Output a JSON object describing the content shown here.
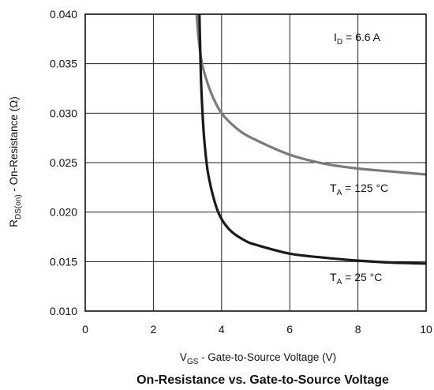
{
  "chart_data": {
    "type": "line",
    "title": "On-Resistance vs. Gate-to-Source Voltage",
    "xlabel": {
      "main": "V",
      "sub": "GS",
      "rest": " - Gate-to-Source Voltage (V)"
    },
    "ylabel": {
      "main": "R",
      "sub": "DS(on)",
      "rest": " - On-Resistance (Ω)"
    },
    "xlim": [
      0,
      10
    ],
    "ylim": [
      0.01,
      0.04
    ],
    "xticks": [
      0,
      2,
      4,
      6,
      8,
      10
    ],
    "xtick_labels": [
      "0",
      "2",
      "4",
      "6",
      "8",
      "10"
    ],
    "yticks": [
      0.01,
      0.015,
      0.02,
      0.025,
      0.03,
      0.035,
      0.04
    ],
    "ytick_labels": [
      "0.010",
      "0.015",
      "0.020",
      "0.025",
      "0.030",
      "0.035",
      "0.040"
    ],
    "grid": true,
    "annotations": {
      "id": {
        "main": "I",
        "sub": "D",
        "rest": " = 6.6 A"
      },
      "t125": {
        "main": "T",
        "sub": "A",
        "rest": " = 125 °C"
      },
      "t25": {
        "main": "T",
        "sub": "A",
        "rest": " = 25 °C"
      }
    },
    "series": [
      {
        "color": "#7a7a7a",
        "x": [
          3.27,
          3.3,
          3.35,
          3.4,
          3.5,
          3.7,
          4.0,
          4.5,
          5.0,
          6.0,
          7.0,
          8.0,
          9.0,
          10.0
        ],
        "y": [
          0.04,
          0.0385,
          0.0368,
          0.0355,
          0.034,
          0.032,
          0.03,
          0.0283,
          0.0273,
          0.0258,
          0.0249,
          0.0244,
          0.0241,
          0.0238
        ]
      },
      {
        "color": "#1a1a1a",
        "x": [
          3.35,
          3.37,
          3.4,
          3.45,
          3.5,
          3.6,
          3.8,
          4.0,
          4.3,
          4.7,
          5.0,
          6.0,
          7.0,
          8.0,
          9.0,
          10.0
        ],
        "y": [
          0.04,
          0.037,
          0.033,
          0.0295,
          0.027,
          0.024,
          0.021,
          0.0193,
          0.018,
          0.0171,
          0.0167,
          0.0158,
          0.0154,
          0.0151,
          0.0149,
          0.0148
        ]
      }
    ]
  }
}
